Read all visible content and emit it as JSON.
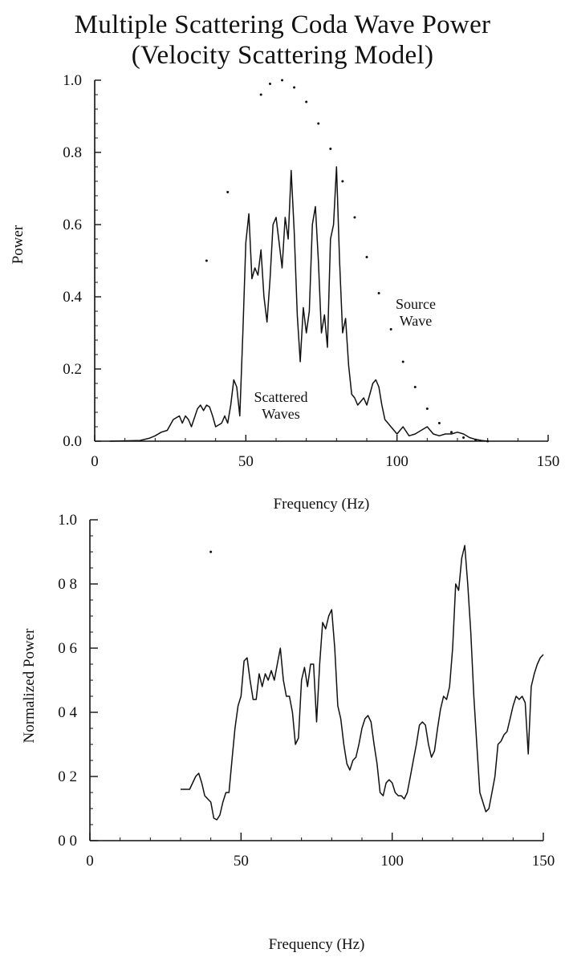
{
  "title": "Multiple Scattering Coda Wave Power",
  "subtitle": "(Velocity Scattering Model)",
  "chart_data": [
    {
      "type": "line",
      "xlabel": "Frequency (Hz)",
      "ylabel": "Power",
      "xlim": [
        0,
        150
      ],
      "ylim": [
        0,
        1.0
      ],
      "xticks": [
        "0",
        "50",
        "100",
        "150"
      ],
      "yticks": [
        "0.0",
        "0.2",
        "0.4",
        "0.6",
        "0.8",
        "1.0"
      ],
      "annotations": [
        {
          "text": [
            "Source",
            "Wave"
          ]
        },
        {
          "text": [
            "Scattered",
            "Waves"
          ]
        }
      ],
      "series": [
        {
          "style": "dotted",
          "x": [
            37,
            44,
            55,
            58,
            62,
            66,
            70,
            74,
            78,
            82,
            86,
            90,
            94,
            98,
            102,
            106,
            110,
            114,
            118,
            122,
            126,
            130
          ],
          "y": [
            0.5,
            0.69,
            0.96,
            0.99,
            1.0,
            0.98,
            0.94,
            0.88,
            0.81,
            0.72,
            0.62,
            0.51,
            0.41,
            0.31,
            0.22,
            0.15,
            0.09,
            0.05,
            0.025,
            0.01,
            0.004,
            0.0
          ]
        },
        {
          "style": "solid",
          "x": [
            5,
            15,
            18,
            20,
            22,
            24,
            26,
            28,
            29,
            30,
            31,
            32,
            34,
            35,
            36,
            37,
            38,
            39,
            40,
            42,
            43,
            44,
            45,
            46,
            47,
            48,
            49,
            50,
            51,
            52,
            53,
            54,
            55,
            56,
            57,
            58,
            59,
            60,
            61,
            62,
            63,
            64,
            65,
            66,
            67,
            68,
            69,
            70,
            71,
            72,
            73,
            74,
            75,
            76,
            77,
            78,
            79,
            80,
            81,
            82,
            83,
            84,
            85,
            86,
            87,
            88,
            89,
            90,
            91,
            92,
            93,
            94,
            95,
            96,
            97,
            98,
            100,
            102,
            104,
            106,
            108,
            110,
            112,
            114,
            116,
            118,
            120,
            122,
            124,
            126,
            128,
            130
          ],
          "y": [
            0.0,
            0.002,
            0.008,
            0.015,
            0.025,
            0.03,
            0.06,
            0.07,
            0.05,
            0.07,
            0.06,
            0.04,
            0.09,
            0.1,
            0.085,
            0.1,
            0.095,
            0.07,
            0.04,
            0.05,
            0.07,
            0.05,
            0.1,
            0.17,
            0.15,
            0.07,
            0.3,
            0.55,
            0.63,
            0.45,
            0.48,
            0.46,
            0.53,
            0.4,
            0.33,
            0.45,
            0.6,
            0.62,
            0.55,
            0.48,
            0.62,
            0.56,
            0.75,
            0.58,
            0.35,
            0.22,
            0.37,
            0.3,
            0.36,
            0.6,
            0.65,
            0.5,
            0.3,
            0.35,
            0.26,
            0.56,
            0.6,
            0.76,
            0.5,
            0.3,
            0.34,
            0.21,
            0.13,
            0.12,
            0.1,
            0.11,
            0.12,
            0.1,
            0.13,
            0.16,
            0.17,
            0.15,
            0.1,
            0.06,
            0.05,
            0.04,
            0.02,
            0.04,
            0.015,
            0.02,
            0.03,
            0.04,
            0.02,
            0.015,
            0.02,
            0.02,
            0.025,
            0.02,
            0.01,
            0.005,
            0.002,
            0.0
          ]
        }
      ]
    },
    {
      "type": "line",
      "xlabel": "Frequency (Hz)",
      "ylabel": "Normalized Power",
      "xlim": [
        0,
        150
      ],
      "ylim": [
        0,
        1.0
      ],
      "xticks": [
        "0",
        "50",
        "100",
        "150"
      ],
      "yticks": [
        "0 0",
        "0 2",
        "0 4",
        "0 6",
        "0 8",
        "1.0"
      ],
      "series": [
        {
          "style": "dotted",
          "x": [
            40
          ],
          "y": [
            0.9
          ]
        },
        {
          "style": "solid",
          "x": [
            30,
            33,
            35,
            36,
            37,
            38,
            40,
            41,
            42,
            43,
            44,
            45,
            46,
            47,
            48,
            49,
            50,
            51,
            52,
            53,
            54,
            55,
            56,
            57,
            58,
            59,
            60,
            61,
            62,
            63,
            64,
            65,
            66,
            67,
            68,
            69,
            70,
            71,
            72,
            73,
            74,
            75,
            76,
            77,
            78,
            79,
            80,
            81,
            82,
            83,
            84,
            85,
            86,
            87,
            88,
            89,
            90,
            91,
            92,
            93,
            94,
            95,
            96,
            97,
            98,
            99,
            100,
            101,
            102,
            103,
            104,
            105,
            106,
            107,
            108,
            109,
            110,
            111,
            112,
            113,
            114,
            115,
            116,
            117,
            118,
            119,
            120,
            121,
            122,
            123,
            124,
            125,
            126,
            127,
            128,
            129,
            130,
            131,
            132,
            133,
            134,
            135,
            136,
            137,
            138,
            139,
            140,
            141,
            142,
            143,
            144,
            145,
            146,
            147,
            148,
            149,
            150
          ],
          "y": [
            0.16,
            0.16,
            0.2,
            0.21,
            0.18,
            0.14,
            0.12,
            0.07,
            0.065,
            0.08,
            0.12,
            0.15,
            0.15,
            0.25,
            0.35,
            0.42,
            0.45,
            0.56,
            0.57,
            0.5,
            0.44,
            0.44,
            0.52,
            0.48,
            0.52,
            0.5,
            0.53,
            0.5,
            0.55,
            0.6,
            0.5,
            0.45,
            0.45,
            0.4,
            0.3,
            0.32,
            0.5,
            0.54,
            0.48,
            0.55,
            0.55,
            0.37,
            0.55,
            0.68,
            0.66,
            0.7,
            0.72,
            0.6,
            0.42,
            0.38,
            0.3,
            0.24,
            0.22,
            0.25,
            0.26,
            0.3,
            0.35,
            0.38,
            0.39,
            0.37,
            0.3,
            0.24,
            0.15,
            0.14,
            0.18,
            0.19,
            0.18,
            0.15,
            0.14,
            0.14,
            0.13,
            0.15,
            0.2,
            0.25,
            0.3,
            0.36,
            0.37,
            0.36,
            0.3,
            0.26,
            0.28,
            0.35,
            0.41,
            0.45,
            0.44,
            0.48,
            0.6,
            0.8,
            0.78,
            0.88,
            0.92,
            0.8,
            0.65,
            0.45,
            0.3,
            0.15,
            0.12,
            0.09,
            0.1,
            0.15,
            0.2,
            0.3,
            0.31,
            0.33,
            0.34,
            0.38,
            0.42,
            0.45,
            0.44,
            0.45,
            0.43,
            0.27,
            0.48,
            0.52,
            0.55,
            0.57,
            0.58
          ]
        }
      ]
    }
  ]
}
